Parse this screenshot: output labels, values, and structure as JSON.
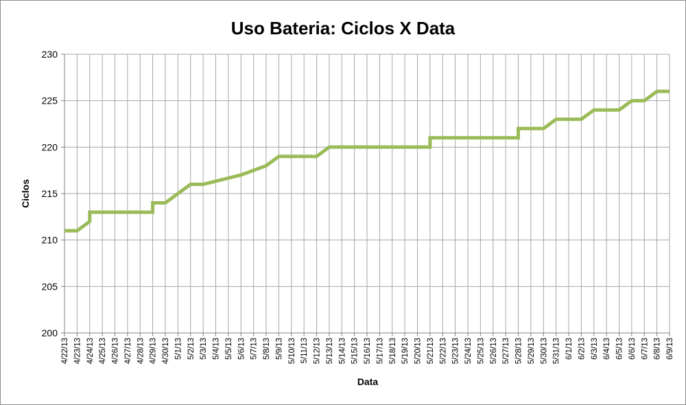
{
  "chart_data": {
    "type": "line",
    "title": "Uso Bateria: Ciclos X Data",
    "xlabel": "Data",
    "ylabel": "Ciclos",
    "ylim": [
      200,
      230
    ],
    "yticks": [
      200,
      205,
      210,
      215,
      220,
      225,
      230
    ],
    "grid": true,
    "legend": "none",
    "line_color": "#9bbb59",
    "categories": [
      "4/22/13",
      "4/23/13",
      "4/24/13",
      "4/25/13",
      "4/26/13",
      "4/27/13",
      "4/28/13",
      "4/29/13",
      "4/30/13",
      "5/1/13",
      "5/2/13",
      "5/3/13",
      "5/4/13",
      "5/5/13",
      "5/6/13",
      "5/7/13",
      "5/8/13",
      "5/9/13",
      "5/10/13",
      "5/11/13",
      "5/12/13",
      "5/13/13",
      "5/14/13",
      "5/15/13",
      "5/16/13",
      "5/17/13",
      "5/18/13",
      "5/19/13",
      "5/20/13",
      "5/21/13",
      "5/22/13",
      "5/23/13",
      "5/24/13",
      "5/25/13",
      "5/26/13",
      "5/27/13",
      "5/28/13",
      "5/29/13",
      "5/30/13",
      "5/31/13",
      "6/1/13",
      "6/2/13",
      "6/3/13",
      "6/4/13",
      "6/5/13",
      "6/6/13",
      "6/7/13",
      "6/8/13",
      "6/9/13"
    ],
    "series": [
      {
        "points": [
          {
            "x": "4/22/13",
            "y": 211
          },
          {
            "x": "4/23/13",
            "y": 211
          },
          {
            "x": "4/24/13",
            "y": 212
          },
          {
            "x": "4/24/13",
            "y": 213
          },
          {
            "x": "4/29/13",
            "y": 213
          },
          {
            "x": "4/29/13",
            "y": 214
          },
          {
            "x": "4/30/13",
            "y": 214
          },
          {
            "x": "5/2/13",
            "y": 216
          },
          {
            "x": "5/3/13",
            "y": 216
          },
          {
            "x": "5/6/13",
            "y": 217
          },
          {
            "x": "5/8/13",
            "y": 218
          },
          {
            "x": "5/9/13",
            "y": 219
          },
          {
            "x": "5/12/13",
            "y": 219
          },
          {
            "x": "5/13/13",
            "y": 220
          },
          {
            "x": "5/21/13",
            "y": 220
          },
          {
            "x": "5/21/13",
            "y": 221
          },
          {
            "x": "5/28/13",
            "y": 221
          },
          {
            "x": "5/28/13",
            "y": 222
          },
          {
            "x": "5/30/13",
            "y": 222
          },
          {
            "x": "5/31/13",
            "y": 223
          },
          {
            "x": "6/2/13",
            "y": 223
          },
          {
            "x": "6/3/13",
            "y": 224
          },
          {
            "x": "6/5/13",
            "y": 224
          },
          {
            "x": "6/6/13",
            "y": 225
          },
          {
            "x": "6/7/13",
            "y": 225
          },
          {
            "x": "6/8/13",
            "y": 226
          },
          {
            "x": "6/9/13",
            "y": 226
          }
        ]
      }
    ]
  }
}
